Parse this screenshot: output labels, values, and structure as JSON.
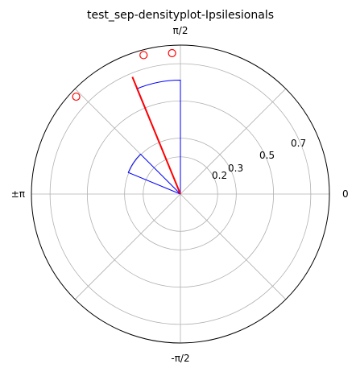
{
  "chart_data": {
    "type": "polar",
    "title": "test_sep-densityplot-Ipsilesionals",
    "angle_tick_labels": [
      "0",
      "π/2",
      "±π",
      "-π/2"
    ],
    "angle_tick_positions_rad": [
      0,
      1.5708,
      3.1416,
      -1.5708
    ],
    "radial_ticks": [
      0.2,
      0.3,
      0.5,
      0.7
    ],
    "radial_tick_labels": [
      "0.2",
      "0.3",
      "0.5",
      "0.7"
    ],
    "rmax": 0.8,
    "grid": true,
    "colors": {
      "histogram": "#0000ff",
      "mean_vector": "#ff0000",
      "points": "#ff0000",
      "grid": "#b0b0b0",
      "spine": "#000000"
    },
    "histogram_bins": [
      {
        "theta_start": 1.5708,
        "theta_end": 1.9635,
        "value": 0.612
      },
      {
        "theta_start": 1.9635,
        "theta_end": 2.3562,
        "value": 0.0
      },
      {
        "theta_start": 2.3562,
        "theta_end": 2.7489,
        "value": 0.303
      }
    ],
    "mean_vector": {
      "theta": 1.96,
      "r": 0.68
    },
    "points": [
      {
        "theta": 1.63,
        "r": 0.758
      },
      {
        "theta": 1.83,
        "r": 0.772
      },
      {
        "theta": 2.39,
        "r": 0.766
      }
    ]
  }
}
